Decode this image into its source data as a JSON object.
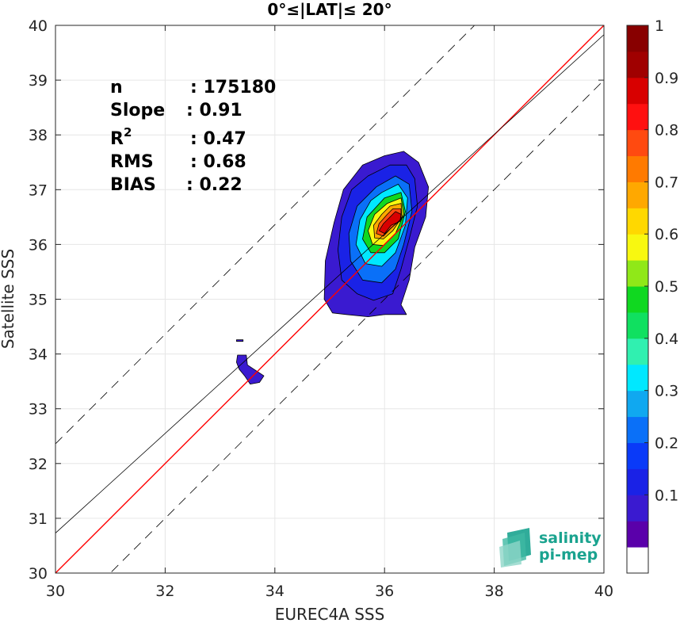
{
  "chart_data": {
    "type": "heatmap",
    "title": "0°≤|LAT|≤ 20°",
    "xlabel": "EUREC4A SSS",
    "ylabel": "Satellite SSS",
    "xlim": [
      30,
      40
    ],
    "ylim": [
      30,
      40
    ],
    "xticks": [
      "30",
      "32",
      "34",
      "36",
      "38",
      "40"
    ],
    "yticks": [
      "30",
      "31",
      "32",
      "33",
      "34",
      "35",
      "36",
      "37",
      "38",
      "39",
      "40"
    ],
    "grid": true,
    "stats": [
      {
        "label": "n",
        "value": ": 175180"
      },
      {
        "label": "Slope",
        "value": ": 0.91"
      },
      {
        "label": "R",
        "sup": "2",
        "value": ": 0.47"
      },
      {
        "label": "RMS",
        "value": ": 0.68"
      },
      {
        "label": "BIAS",
        "value": ": 0.22"
      }
    ],
    "lines": [
      {
        "name": "one-to-one",
        "style": "solid",
        "color": "#ff0000",
        "slope": 1,
        "intercept": 0
      },
      {
        "name": "regression",
        "style": "solid",
        "color": "#000000",
        "slope": 0.91,
        "intercept": 3.43
      },
      {
        "name": "upper-bound",
        "style": "dashed",
        "color": "#000000",
        "slope": 1,
        "intercept": 2.36
      },
      {
        "name": "lower-bound",
        "style": "dashed",
        "color": "#000000",
        "slope": 1,
        "intercept": -1.0
      }
    ],
    "density_peak": {
      "x": 36.05,
      "y": 36.25
    },
    "colorbar": {
      "min": 0,
      "max": 1,
      "tick_labels": [
        "0.1",
        "0.2",
        "0.3",
        "0.4",
        "0.5",
        "0.6",
        "0.7",
        "0.8",
        "0.9",
        "1"
      ],
      "tick_values": [
        0.1,
        0.2,
        0.3,
        0.4,
        0.5,
        0.6,
        0.7,
        0.8,
        0.9,
        1.0
      ],
      "colors": [
        "#ffffff",
        "#5a00aa",
        "#3a1ad0",
        "#1a22e6",
        "#0a3af8",
        "#0a70f8",
        "#10a8f0",
        "#00e8ff",
        "#30f0b0",
        "#10e060",
        "#10d820",
        "#90e818",
        "#f8f810",
        "#ffd800",
        "#ffa800",
        "#ff7a00",
        "#ff4a10",
        "#ff1010",
        "#d80000",
        "#a00000",
        "#880000"
      ]
    },
    "contours": [
      {
        "level": 0.05,
        "color": "#3a1ad0",
        "polygon": [
          [
            35.6,
            37.45
          ],
          [
            36.0,
            37.62
          ],
          [
            36.35,
            37.7
          ],
          [
            36.62,
            37.5
          ],
          [
            36.8,
            37.05
          ],
          [
            36.75,
            36.5
          ],
          [
            36.55,
            35.95
          ],
          [
            36.45,
            35.35
          ],
          [
            36.3,
            34.9
          ],
          [
            36.4,
            34.72
          ],
          [
            36.0,
            34.72
          ],
          [
            35.7,
            34.68
          ],
          [
            35.3,
            34.72
          ],
          [
            35.05,
            34.75
          ],
          [
            34.9,
            35.0
          ],
          [
            34.92,
            35.7
          ],
          [
            35.08,
            36.4
          ],
          [
            35.25,
            37.0
          ]
        ]
      },
      {
        "level": 0.15,
        "color": "#1a22e6",
        "polygon": [
          [
            35.7,
            37.25
          ],
          [
            36.1,
            37.45
          ],
          [
            36.4,
            37.45
          ],
          [
            36.55,
            37.2
          ],
          [
            36.6,
            36.7
          ],
          [
            36.45,
            36.1
          ],
          [
            36.3,
            35.55
          ],
          [
            36.15,
            35.1
          ],
          [
            35.8,
            34.98
          ],
          [
            35.5,
            35.1
          ],
          [
            35.22,
            35.35
          ],
          [
            35.15,
            35.9
          ],
          [
            35.22,
            36.5
          ],
          [
            35.4,
            37.0
          ]
        ]
      },
      {
        "level": 0.25,
        "color": "#0a70f8",
        "polygon": [
          [
            35.85,
            37.05
          ],
          [
            36.2,
            37.25
          ],
          [
            36.45,
            37.1
          ],
          [
            36.5,
            36.6
          ],
          [
            36.35,
            36.0
          ],
          [
            36.2,
            35.55
          ],
          [
            35.95,
            35.3
          ],
          [
            35.6,
            35.35
          ],
          [
            35.38,
            35.7
          ],
          [
            35.35,
            36.2
          ],
          [
            35.5,
            36.7
          ]
        ]
      },
      {
        "level": 0.35,
        "color": "#00e8ff",
        "polygon": [
          [
            35.95,
            36.95
          ],
          [
            36.25,
            37.1
          ],
          [
            36.42,
            36.85
          ],
          [
            36.38,
            36.35
          ],
          [
            36.2,
            35.85
          ],
          [
            35.95,
            35.6
          ],
          [
            35.65,
            35.65
          ],
          [
            35.48,
            36.0
          ],
          [
            35.55,
            36.45
          ],
          [
            35.75,
            36.8
          ]
        ]
      },
      {
        "level": 0.45,
        "color": "#10d820",
        "polygon": [
          [
            36.0,
            36.85
          ],
          [
            36.3,
            36.95
          ],
          [
            36.38,
            36.6
          ],
          [
            36.25,
            36.1
          ],
          [
            36.0,
            35.85
          ],
          [
            35.75,
            35.85
          ],
          [
            35.6,
            36.1
          ],
          [
            35.68,
            36.5
          ]
        ]
      },
      {
        "level": 0.6,
        "color": "#f8f810",
        "polygon": [
          [
            36.05,
            36.75
          ],
          [
            36.3,
            36.85
          ],
          [
            36.35,
            36.55
          ],
          [
            36.2,
            36.2
          ],
          [
            35.98,
            35.98
          ],
          [
            35.78,
            36.0
          ],
          [
            35.7,
            36.25
          ],
          [
            35.82,
            36.55
          ]
        ]
      },
      {
        "level": 0.7,
        "color": "#ffa800",
        "polygon": [
          [
            36.1,
            36.7
          ],
          [
            36.3,
            36.75
          ],
          [
            36.32,
            36.5
          ],
          [
            36.15,
            36.25
          ],
          [
            35.98,
            36.1
          ],
          [
            35.82,
            36.12
          ],
          [
            35.8,
            36.35
          ],
          [
            35.95,
            36.55
          ]
        ]
      },
      {
        "level": 0.8,
        "color": "#ff4a10",
        "polygon": [
          [
            36.15,
            36.65
          ],
          [
            36.3,
            36.65
          ],
          [
            36.3,
            36.45
          ],
          [
            36.12,
            36.3
          ],
          [
            35.98,
            36.15
          ],
          [
            35.85,
            36.2
          ],
          [
            35.9,
            36.38
          ],
          [
            36.05,
            36.55
          ]
        ]
      },
      {
        "level": 0.9,
        "color": "#d80000",
        "polygon": [
          [
            36.2,
            36.6
          ],
          [
            36.3,
            36.55
          ],
          [
            36.28,
            36.42
          ],
          [
            36.12,
            36.35
          ],
          [
            36.0,
            36.2
          ],
          [
            35.9,
            36.25
          ],
          [
            35.98,
            36.38
          ],
          [
            36.1,
            36.5
          ]
        ]
      },
      {
        "level": 0.05,
        "color": "#3a1ad0",
        "polygon": [
          [
            33.32,
            33.98
          ],
          [
            33.48,
            33.98
          ],
          [
            33.5,
            33.8
          ],
          [
            33.62,
            33.72
          ],
          [
            33.8,
            33.6
          ],
          [
            33.72,
            33.48
          ],
          [
            33.55,
            33.45
          ],
          [
            33.45,
            33.6
          ],
          [
            33.35,
            33.72
          ],
          [
            33.3,
            33.85
          ]
        ]
      },
      {
        "level": 0.05,
        "color": "#3a1ad0",
        "polygon": [
          [
            33.3,
            34.26
          ],
          [
            33.42,
            34.26
          ],
          [
            33.42,
            34.23
          ],
          [
            33.3,
            34.23
          ]
        ]
      }
    ]
  },
  "logo": {
    "line1": "salinity",
    "line2": "pi-mep"
  }
}
